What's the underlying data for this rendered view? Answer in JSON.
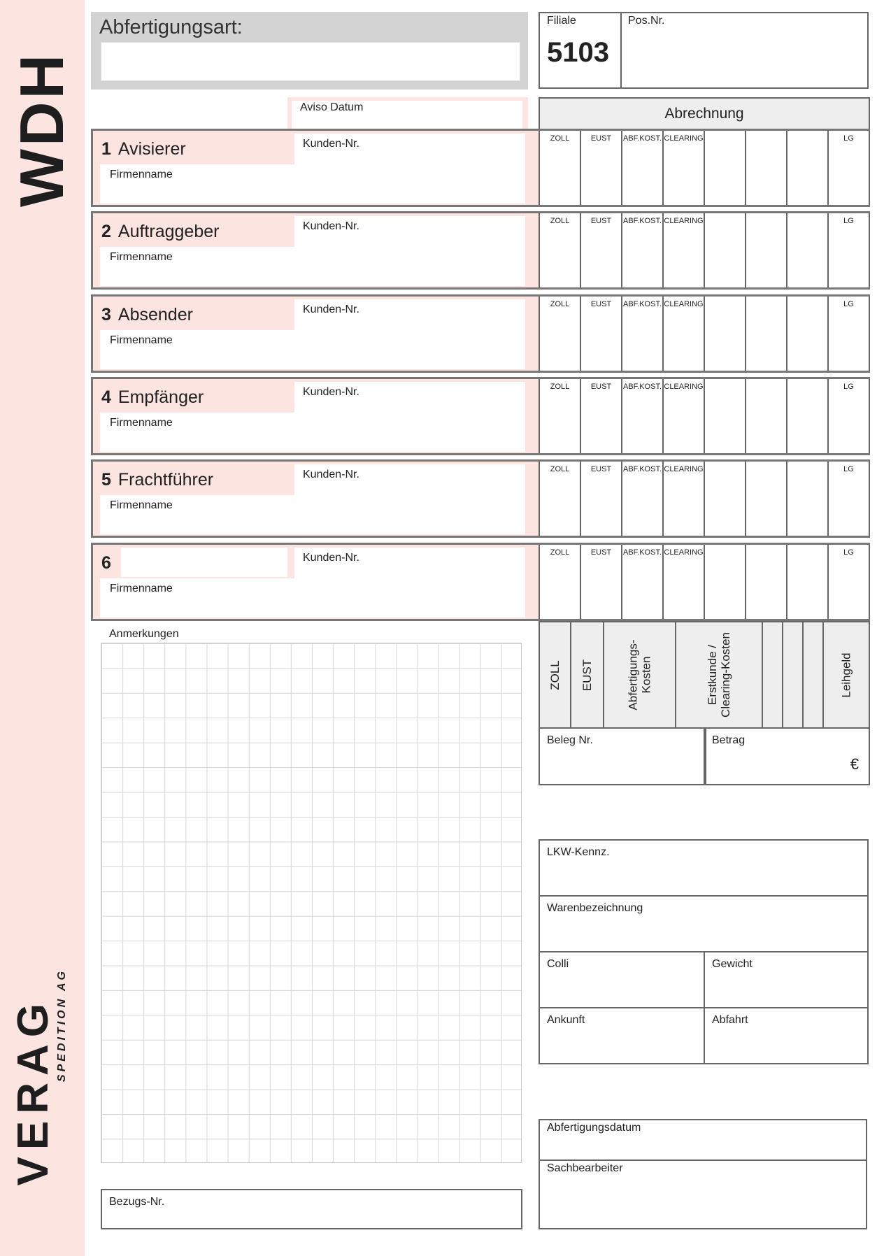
{
  "sidebar": {
    "title": "WDH",
    "brand": "VERAG",
    "brand_sub": "SPEDITION AG"
  },
  "header": {
    "abfertigungsart_label": "Abfertigungsart:",
    "filiale_label": "Filiale",
    "filiale_value": "5103",
    "posnr_label": "Pos.Nr.",
    "aviso_label": "Aviso Datum"
  },
  "abrechnung": {
    "title": "Abrechnung",
    "columns": [
      "ZOLL",
      "EUST",
      "ABF.KOST.",
      "CLEARING",
      "",
      "",
      "",
      "LG"
    ],
    "vertical_headers": [
      "ZOLL",
      "EUST",
      "Abfertigungs-\nKosten",
      "Erstkunde /\nClearing-Kosten",
      "",
      "",
      "",
      "Leihgeld"
    ],
    "beleg_label": "Beleg Nr.",
    "betrag_label": "Betrag",
    "currency": "€"
  },
  "sections": [
    {
      "num": "1",
      "title": "Avisierer",
      "kunden": "Kunden-Nr.",
      "firma": "Firmenname"
    },
    {
      "num": "2",
      "title": "Auftraggeber",
      "kunden": "Kunden-Nr.",
      "firma": "Firmenname"
    },
    {
      "num": "3",
      "title": "Absender",
      "kunden": "Kunden-Nr.",
      "firma": "Firmenname"
    },
    {
      "num": "4",
      "title": "Empfänger",
      "kunden": "Kunden-Nr.",
      "firma": "Firmenname"
    },
    {
      "num": "5",
      "title": "Frachtführer",
      "kunden": "Kunden-Nr.",
      "firma": "Firmenname"
    },
    {
      "num": "6",
      "title": "",
      "kunden": "Kunden-Nr.",
      "firma": "Firmenname"
    }
  ],
  "notes": {
    "label": "Anmerkungen",
    "bezugs_label": "Bezugs-Nr."
  },
  "transport": {
    "lkw": "LKW-Kennz.",
    "waren": "Warenbezeichnung",
    "colli": "Colli",
    "gewicht": "Gewicht",
    "ankunft": "Ankunft",
    "abfahrt": "Abfahrt"
  },
  "footer": {
    "datum": "Abfertigungsdatum",
    "sachbearbeiter": "Sachbearbeiter"
  },
  "colors": {
    "pink": "#fce4e1",
    "gray": "#d3d3d3",
    "border": "#666666"
  }
}
